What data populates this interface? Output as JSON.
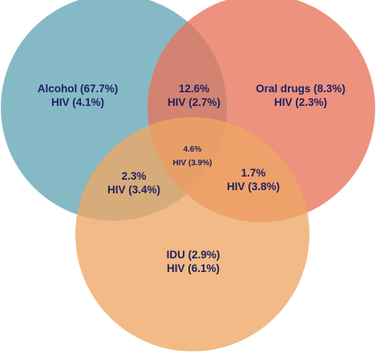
{
  "diagram": {
    "type": "venn-3",
    "colors": {
      "alcohol": "#6aaab9",
      "oral_drugs": "#e8735a",
      "idu": "#eea664",
      "label": "#1f2160"
    },
    "sets": {
      "alcohol": {
        "line1": "Alcohol (67.7%)",
        "line2": "HIV (4.1%)"
      },
      "oral_drugs": {
        "line1": "Oral drugs (8.3%)",
        "line2": "HIV (2.3%)"
      },
      "idu": {
        "line1": "IDU (2.9%)",
        "line2": "HIV (6.1%)"
      }
    },
    "intersections": {
      "alcohol_oral": {
        "line1": "12.6%",
        "line2": "HIV (2.7%)"
      },
      "alcohol_idu": {
        "line1": "2.3%",
        "line2": "HIV (3.4%)"
      },
      "oral_idu": {
        "line1": "1.7%",
        "line2": "HIV (3.8%)"
      },
      "all_three": {
        "line1": "4.6%",
        "line2": "HIV (3.9%)"
      }
    }
  }
}
